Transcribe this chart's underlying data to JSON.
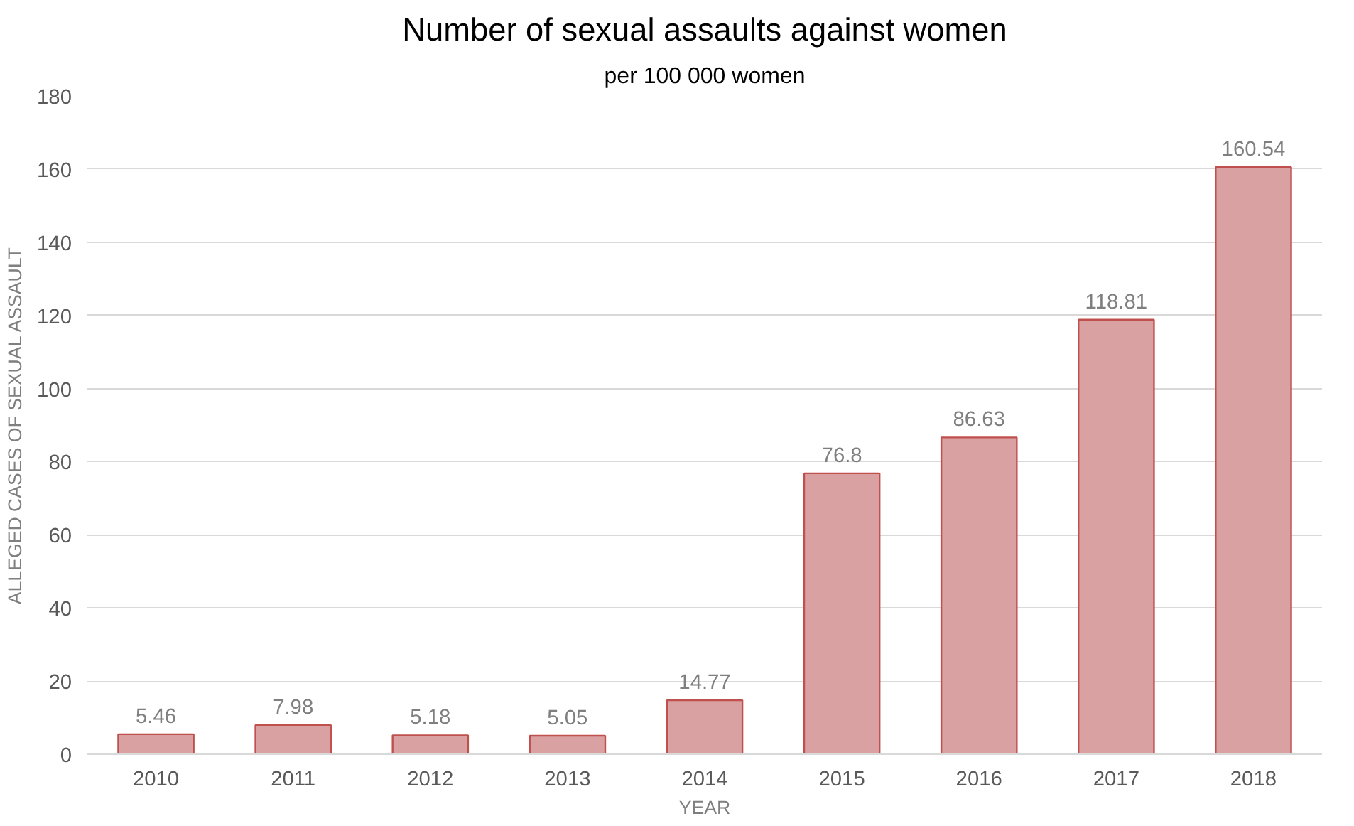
{
  "chart_data": {
    "type": "bar",
    "title": "Number of sexual assaults against women",
    "subtitle": "per 100 000 women",
    "xlabel": "YEAR",
    "ylabel": "ALLEGED CASES OF SEXUAL ASSAULT",
    "categories": [
      "2010",
      "2011",
      "2012",
      "2013",
      "2014",
      "2015",
      "2016",
      "2017",
      "2018"
    ],
    "values": [
      5.46,
      7.98,
      5.18,
      5.05,
      14.77,
      76.8,
      86.63,
      118.81,
      160.54
    ],
    "color": "#d9a1a1",
    "ylim": [
      0,
      180
    ],
    "yticks": [
      0,
      20,
      40,
      60,
      80,
      100,
      120,
      140,
      160,
      180
    ],
    "grid": "y",
    "data_labels": true
  }
}
